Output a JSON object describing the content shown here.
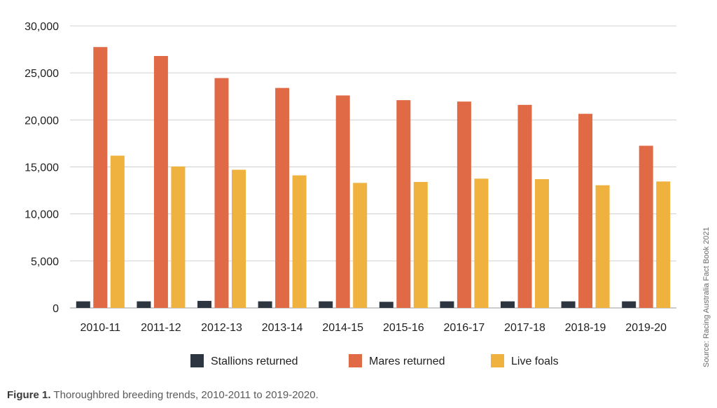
{
  "chart_data": {
    "type": "bar",
    "categories": [
      "2010-11",
      "2011-12",
      "2012-13",
      "2013-14",
      "2014-15",
      "2015-16",
      "2016-17",
      "2017-18",
      "2018-19",
      "2019-20"
    ],
    "series": [
      {
        "name": "Stallions returned",
        "color": "#2d3640",
        "values": [
          700,
          700,
          750,
          700,
          700,
          650,
          700,
          700,
          700,
          700
        ]
      },
      {
        "name": "Mares returned",
        "color": "#e06a45",
        "values": [
          27750,
          26800,
          24450,
          23400,
          22600,
          22100,
          21950,
          21600,
          20650,
          17250
        ]
      },
      {
        "name": "Live foals",
        "color": "#f0b23e",
        "values": [
          16200,
          15050,
          14700,
          14100,
          13300,
          13400,
          13750,
          13700,
          13050,
          13450
        ]
      }
    ],
    "ylim": [
      0,
      30000
    ],
    "yticks": [
      "0",
      "5,000",
      "10,000",
      "15,000",
      "20,000",
      "25,000",
      "30,000"
    ],
    "ytick_values": [
      0,
      5000,
      10000,
      15000,
      20000,
      25000,
      30000
    ],
    "grid": true,
    "legend_position": "bottom",
    "source": "Source: Racing Australia Fact Book 2021"
  },
  "caption": {
    "label": "Figure 1.",
    "text": " Thoroughbred breeding trends, 2010-2011 to 2019-2020."
  }
}
